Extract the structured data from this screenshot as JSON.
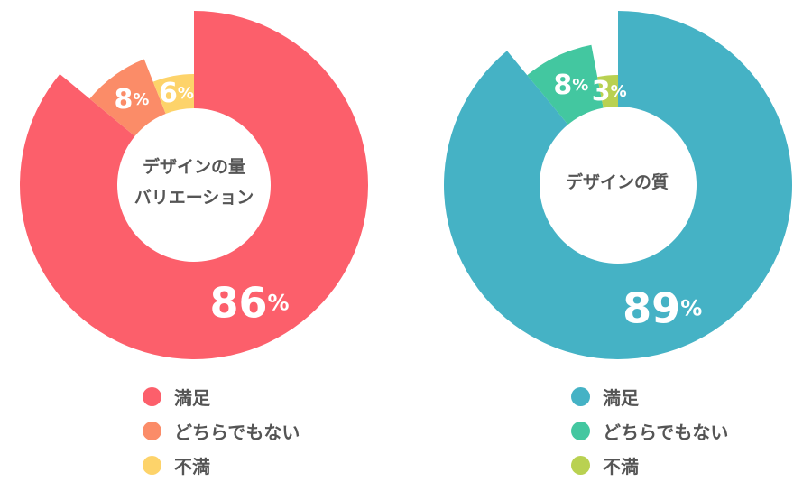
{
  "chart_data": [
    {
      "type": "pie",
      "title": "デザインの量\nバリエーション",
      "categories": [
        "満足",
        "どちらでもない",
        "不満"
      ],
      "values": [
        86,
        8,
        6
      ],
      "colors": [
        "#fc5f6b",
        "#fb8c68",
        "#fdd36a"
      ],
      "data_labels": [
        "86",
        "8",
        "6"
      ],
      "unit": "%"
    },
    {
      "type": "pie",
      "title": "デザインの質",
      "categories": [
        "満足",
        "どちらでもない",
        "不満"
      ],
      "values": [
        89,
        8,
        3
      ],
      "colors": [
        "#45b2c5",
        "#43c7a0",
        "#b9d151"
      ],
      "data_labels": [
        "89",
        "8",
        "3"
      ],
      "unit": "%"
    }
  ]
}
